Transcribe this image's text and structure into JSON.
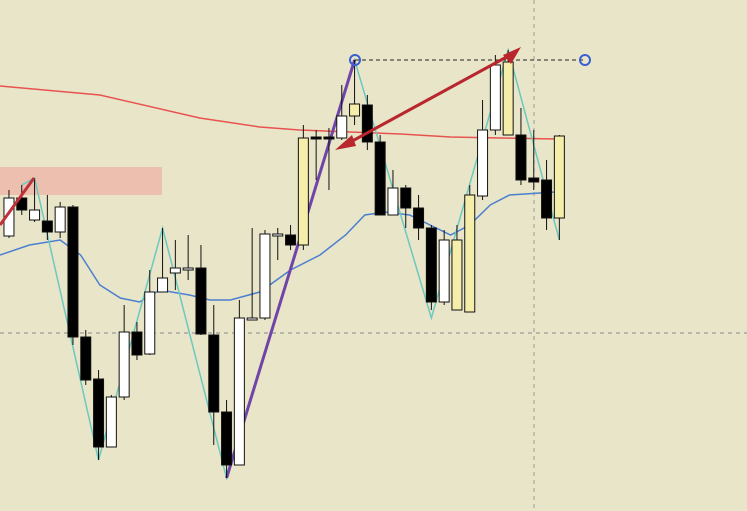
{
  "chart_data": {
    "type": "candlestick",
    "xlim": [
      -0.7,
      57.66
    ],
    "ylim": [
      0,
      511
    ],
    "candles": {
      "open": [
        275,
        313,
        291,
        290,
        279,
        304,
        174,
        132,
        64,
        114,
        179,
        157,
        219,
        238,
        241,
        243,
        176,
        99,
        46,
        191,
        193,
        275,
        276,
        266,
        372,
        372,
        373,
        395,
        406,
        369,
        296,
        323,
        303,
        283,
        209,
        201,
        199,
        315,
        381,
        376,
        376,
        333,
        331,
        293
      ],
      "high": [
        321,
        326,
        333,
        316,
        309,
        306,
        181,
        141,
        116,
        206,
        189,
        241,
        283,
        271,
        276,
        266,
        206,
        111,
        211,
        283,
        281,
        283,
        286,
        386,
        381,
        383,
        426,
        451,
        416,
        376,
        341,
        326,
        316,
        286,
        281,
        286,
        326,
        411,
        456,
        461,
        403,
        381,
        351,
        376
      ],
      "low": [
        273,
        296,
        289,
        271,
        273,
        166,
        126,
        51,
        64,
        111,
        151,
        156,
        219,
        221,
        231,
        176,
        66,
        33,
        46,
        191,
        191,
        251,
        261,
        261,
        331,
        321,
        371,
        386,
        361,
        296,
        296,
        283,
        271,
        201,
        206,
        201,
        199,
        311,
        376,
        376,
        326,
        321,
        281,
        271
      ],
      "close": [
        313,
        301,
        301,
        279,
        304,
        174,
        131,
        64,
        114,
        179,
        156,
        219,
        233,
        243,
        243,
        177,
        99,
        46,
        193,
        193,
        277,
        277,
        266,
        373,
        374,
        374,
        395,
        407,
        369,
        296,
        323,
        303,
        283,
        209,
        271,
        271,
        316,
        381,
        446,
        449,
        331,
        329,
        293,
        375
      ],
      "colors": [
        "#ffffff",
        "#000000",
        "#ffffff",
        "#000000",
        "#ffffff",
        "#000000",
        "#000000",
        "#000000",
        "#ffffff",
        "#ffffff",
        "#000000",
        "#ffffff",
        "#ffffff",
        "#ffffff",
        "#ffffff",
        "#000000",
        "#000000",
        "#000000",
        "#ffffff",
        "#ffffff",
        "#ffffff",
        "#ffffff",
        "#000000",
        "#f5eeaa",
        "#000000",
        "#000000",
        "#ffffff",
        "#f5eeaa",
        "#000000",
        "#000000",
        "#ffffff",
        "#000000",
        "#000000",
        "#000000",
        "#ffffff",
        "#f5eeaa",
        "#f5eeaa",
        "#ffffff",
        "#ffffff",
        "#f5eeaa",
        "#000000",
        "#000000",
        "#000000",
        "#f5eeaa"
      ]
    },
    "lines": [
      {
        "color": "#e8534f",
        "x": [
          -0.7,
          7.1,
          14.9,
          19.6,
          22.7,
          30.6,
          34.5,
          38.4,
          42.7
        ],
        "values": [
          425,
          416,
          393,
          384,
          381,
          377,
          374,
          373,
          372
        ]
      },
      {
        "color": "#4a7fd0",
        "x": [
          -0.7,
          1.6,
          4.0,
          5.6,
          7.1,
          8.7,
          10.2,
          11.8,
          14.1,
          15.7,
          17.3,
          19.6,
          22.0,
          24.3,
          26.3,
          27.8,
          29.4,
          31.3,
          32.9,
          34.5,
          36.0,
          37.6,
          39.1,
          42.7
        ],
        "values": [
          256,
          266,
          271,
          256,
          226,
          213,
          209,
          221,
          216,
          211,
          211,
          219,
          241,
          256,
          276,
          296,
          299,
          296,
          286,
          276,
          286,
          306,
          316,
          319
        ]
      },
      {
        "color": "#6cc8c0",
        "x": [
          1,
          2,
          7,
          12,
          17,
          27,
          33,
          39,
          43
        ],
        "values": [
          326,
          333,
          51,
          283,
          33,
          451,
          193,
          461,
          271
        ]
      },
      {
        "color": "#7045a8",
        "x": [
          17,
          27
        ],
        "values": [
          33,
          451
        ]
      }
    ]
  }
}
